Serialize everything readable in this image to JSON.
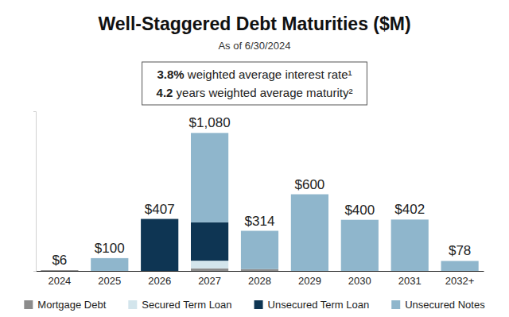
{
  "chart_data": {
    "type": "bar",
    "title": "Well-Staggered Debt Maturities ($M)",
    "subtitle": "As of 6/30/2024",
    "annotations": [
      "3.8% weighted average interest rate¹",
      "4.2 years weighted average maturity²"
    ],
    "categories": [
      "2024",
      "2025",
      "2026",
      "2027",
      "2028",
      "2029",
      "2030",
      "2031",
      "2032+"
    ],
    "series": [
      {
        "name": "Mortgage Debt",
        "color": "#8c8c8c",
        "values": [
          6,
          0,
          0,
          20,
          14,
          0,
          0,
          0,
          0
        ]
      },
      {
        "name": "Secured Term Loan",
        "color": "#d3e5ec",
        "values": [
          0,
          0,
          0,
          60,
          0,
          0,
          0,
          0,
          0
        ]
      },
      {
        "name": "Unsecured Term Loan",
        "color": "#0e3553",
        "values": [
          0,
          0,
          407,
          300,
          0,
          0,
          0,
          0,
          0
        ]
      },
      {
        "name": "Unsecured Notes",
        "color": "#8fb6cc",
        "values": [
          0,
          100,
          0,
          700,
          300,
          600,
          400,
          402,
          78
        ]
      }
    ],
    "total_labels": [
      "$6",
      "$100",
      "$407",
      "$1,080",
      "$314",
      "$600",
      "$400",
      "$402",
      "$78"
    ],
    "ylim": [
      0,
      1250
    ],
    "yticks": [
      0
    ],
    "stacked": true,
    "tick_labels": "x",
    "legend": "bottom"
  }
}
